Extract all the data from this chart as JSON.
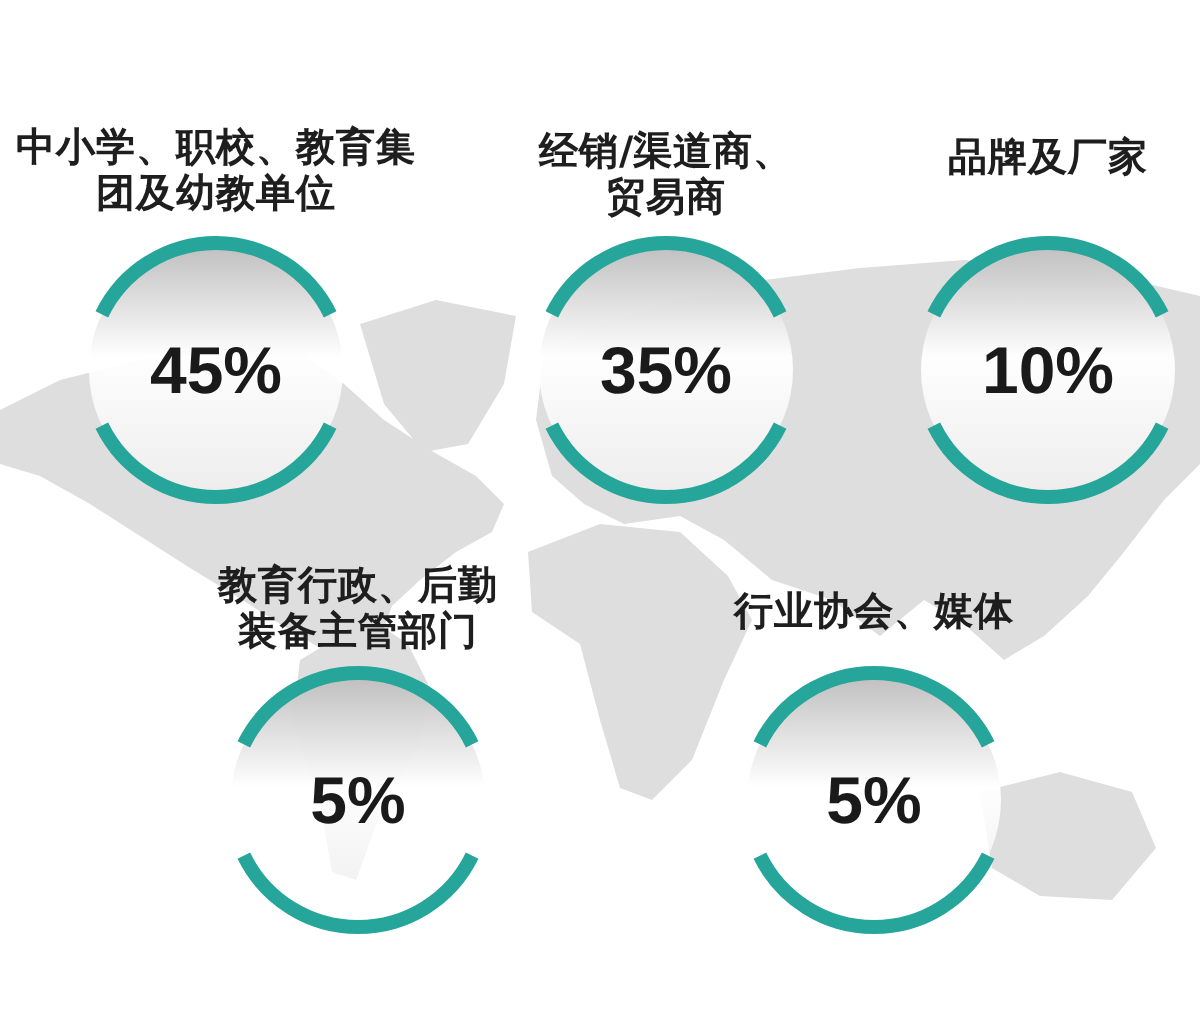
{
  "chart_data": {
    "type": "other",
    "categories": [
      "中小学、职校、教育集团及幼教单位",
      "经销/渠道商、贸易商",
      "品牌及厂家",
      "教育行政、后勤装备主管部门",
      "行业协会、媒体"
    ],
    "values": [
      45,
      35,
      10,
      5,
      5
    ],
    "value_labels": [
      "45%",
      "35%",
      "10%",
      "5%",
      "5%"
    ],
    "color": "#26a69a"
  }
}
